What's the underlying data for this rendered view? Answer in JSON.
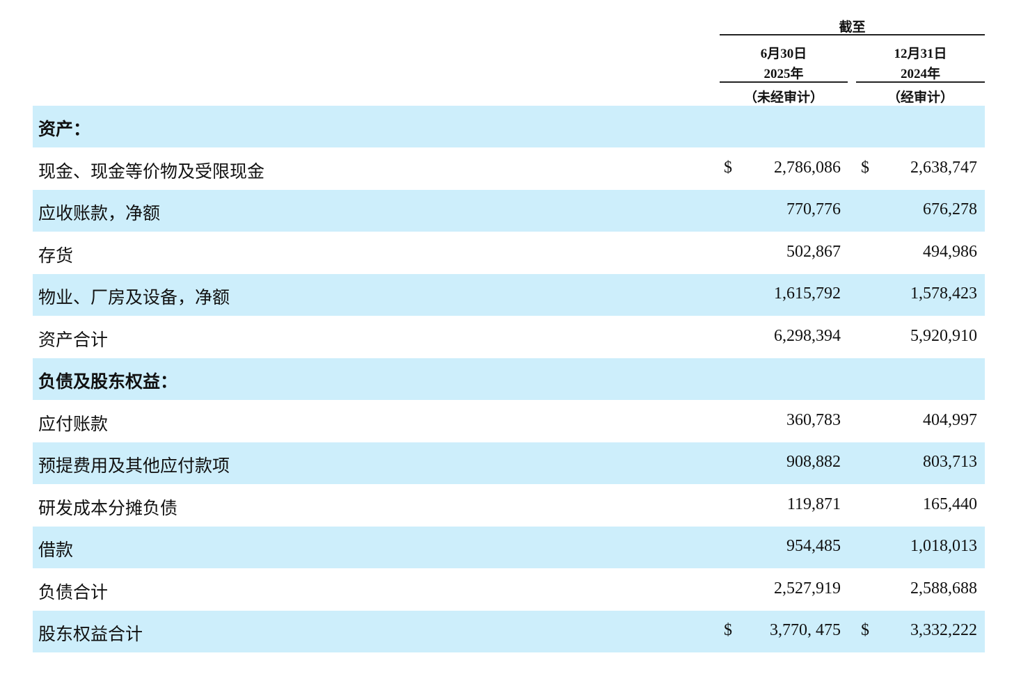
{
  "header": {
    "as_of": "截至",
    "columns": [
      {
        "date": "6月30日",
        "year": "2025年",
        "note": "（未经审计）"
      },
      {
        "date": "12月31日",
        "year": "2024年",
        "note": "（经审计）"
      }
    ]
  },
  "table": {
    "rows": [
      {
        "label": "资产："
      },
      {
        "label": "现金、现金等价物及受限现金",
        "currency": [
          "$",
          "$"
        ],
        "values": [
          "2,786,086",
          "2,638,747"
        ]
      },
      {
        "label": "应收账款，净额",
        "values": [
          "770,776",
          "676,278"
        ]
      },
      {
        "label": "存货",
        "values": [
          "502,867",
          "494,986"
        ]
      },
      {
        "label": "物业、厂房及设备，净额",
        "values": [
          "1,615,792",
          "1,578,423"
        ]
      },
      {
        "label": "资产合计",
        "values": [
          "6,298,394",
          "5,920,910"
        ]
      },
      {
        "label": "负债及股东权益："
      },
      {
        "label": "应付账款",
        "values": [
          "360,783",
          "404,997"
        ]
      },
      {
        "label": "预提费用及其他应付款项",
        "values": [
          "908,882",
          "803,713"
        ]
      },
      {
        "label": "研发成本分摊负债",
        "values": [
          "119,871",
          "165,440"
        ]
      },
      {
        "label": "借款",
        "values": [
          "954,485",
          "1,018,013"
        ]
      },
      {
        "label": "负债合计",
        "values": [
          "2,527,919",
          "2,588,688"
        ]
      },
      {
        "label": "股东权益合计",
        "currency": [
          "$",
          "$"
        ],
        "values": [
          "3,770, 475",
          "3,332,222"
        ]
      }
    ]
  }
}
